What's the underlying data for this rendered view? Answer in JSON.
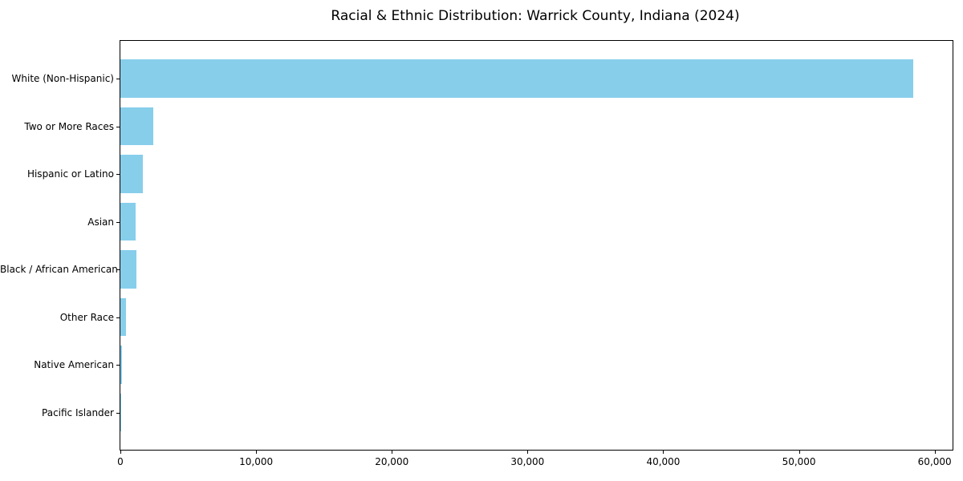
{
  "chart_data": {
    "type": "bar",
    "orientation": "horizontal",
    "title": "Racial & Ethnic Distribution: Warrick County, Indiana (2024)",
    "categories": [
      "White (Non-Hispanic)",
      "Two or More Races",
      "Hispanic or Latino",
      "Asian",
      "Black / African American",
      "Other Race",
      "Native American",
      "Pacific Islander"
    ],
    "values": [
      58400,
      2400,
      1650,
      1100,
      1200,
      400,
      100,
      30
    ],
    "xlabel": "",
    "ylabel": "",
    "xlim": [
      0,
      61320
    ],
    "xticks": [
      {
        "value": 0,
        "label": "0"
      },
      {
        "value": 10000,
        "label": "10,000"
      },
      {
        "value": 20000,
        "label": "20,000"
      },
      {
        "value": 30000,
        "label": "30,000"
      },
      {
        "value": 40000,
        "label": "40,000"
      },
      {
        "value": 50000,
        "label": "50,000"
      },
      {
        "value": 60000,
        "label": "60,000"
      }
    ],
    "bar_color": "#87CEEB",
    "grid": false,
    "legend_position": "none"
  }
}
